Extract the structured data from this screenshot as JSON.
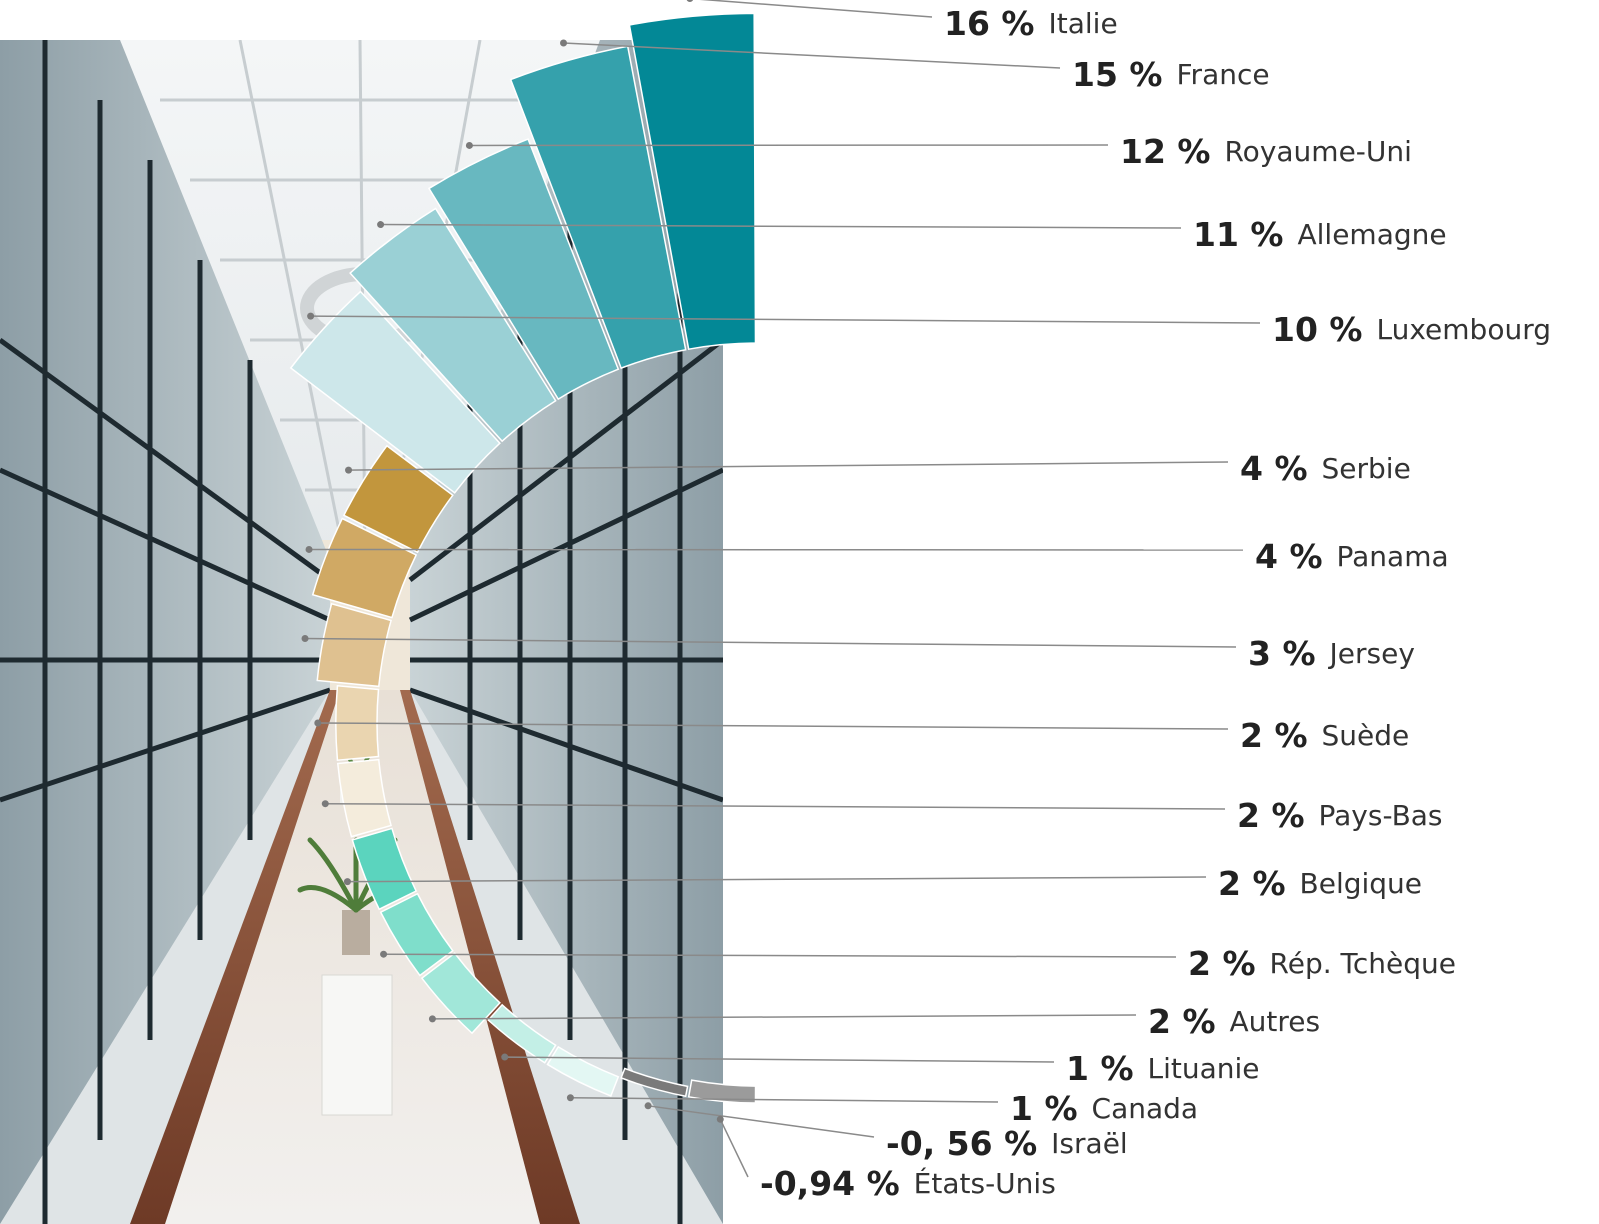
{
  "chart_data": {
    "type": "radial-bar",
    "categories": [
      "Italie",
      "France",
      "Royaume-Uni",
      "Allemagne",
      "Luxembourg",
      "Serbie",
      "Panama",
      "Jersey",
      "Suède",
      "Pays-Bas",
      "Belgique",
      "Rép. Tchèque",
      "Autres",
      "Lituanie",
      "Canada",
      "Israël",
      "États-Unis"
    ],
    "values": [
      16,
      15,
      12,
      11,
      10,
      4,
      4,
      3,
      2,
      2,
      2,
      2,
      2,
      1,
      1,
      -0.56,
      -0.94
    ],
    "value_labels": [
      "16 %",
      "15 %",
      "12 %",
      "11 %",
      "10 %",
      "4 %",
      "4 %",
      "3 %",
      "2 %",
      "2 %",
      "2 %",
      "2 %",
      "2 %",
      "1 %",
      "1 %",
      "-0, 56 %",
      "-0,94 %"
    ],
    "colors": [
      "#038896",
      "#35a1ac",
      "#68b8c0",
      "#9ad0d5",
      "#cde7ea",
      "#c2963d",
      "#d0a964",
      "#dfc190",
      "#ead5b0",
      "#f4ecdc",
      "#5bd4be",
      "#7fdecb",
      "#a1e7d9",
      "#c3efe6",
      "#e3f7f3",
      "#7a7a7a",
      "#9b9b9b"
    ],
    "title": "",
    "xlabel": "",
    "ylabel": ""
  }
}
